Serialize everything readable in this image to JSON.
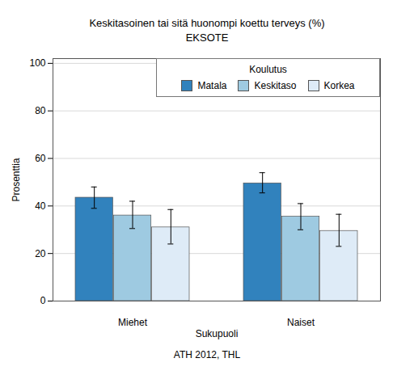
{
  "chart_data": {
    "type": "bar",
    "title": "Keskitasoinen tai sitä huonompi koettu terveys (%)",
    "subtitle": "EKSOTE",
    "caption": "ATH 2012, THL",
    "x_label": "Sukupuoli",
    "y_label": "Prosenttia",
    "legend_title": "Koulutus",
    "categories": [
      "Miehet",
      "Naiset"
    ],
    "series": [
      {
        "name": "Matala",
        "color": "#3182bd",
        "values": [
          43.5,
          49.5
        ],
        "ci_low": [
          39,
          45.5
        ],
        "ci_high": [
          48,
          54
        ]
      },
      {
        "name": "Keskitaso",
        "color": "#9ecae1",
        "values": [
          36,
          35.5
        ],
        "ci_low": [
          30.5,
          30
        ],
        "ci_high": [
          42,
          41
        ]
      },
      {
        "name": "Korkea",
        "color": "#deebf7",
        "values": [
          31,
          29.5
        ],
        "ci_low": [
          24,
          23
        ],
        "ci_high": [
          38.5,
          36.5
        ]
      }
    ],
    "ylim": [
      0,
      102
    ],
    "yticks": [
      0,
      20,
      40,
      60,
      80,
      100
    ],
    "grid": true,
    "legend": "top-right"
  }
}
